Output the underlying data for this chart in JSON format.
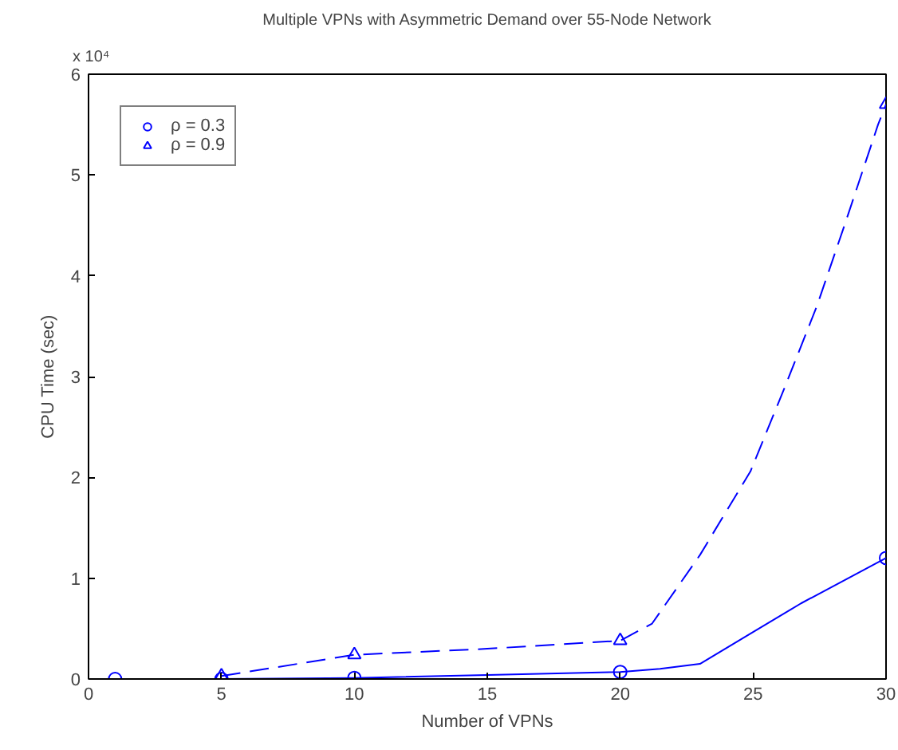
{
  "chart_data": {
    "type": "line",
    "title": "Multiple VPNs with Asymmetric Demand over 55-Node Network",
    "xlabel": "Number of VPNs",
    "ylabel": "CPU Time (sec)",
    "annotations": [
      "x 10⁴"
    ],
    "xlim": [
      0,
      30
    ],
    "xticks": [
      0,
      5,
      10,
      15,
      20,
      25,
      30
    ],
    "ylim": [
      0,
      6
    ],
    "yticks": [
      0,
      1,
      2,
      3,
      4,
      5,
      6
    ],
    "grid": false,
    "legend": "top left",
    "series": [
      {
        "color": "#0000ff",
        "line_style": "solid",
        "x": [
          1,
          5,
          10,
          15,
          20,
          21.5,
          23,
          24.9,
          26.8,
          30
        ],
        "values": [
          0,
          0,
          0.01,
          0.04,
          0.07,
          0.1,
          0.15,
          0.45,
          0.75,
          1.2
        ]
      },
      {
        "color": "#0000ff",
        "line_style": "dashed",
        "x": [
          5,
          10,
          15,
          20,
          21.2,
          23,
          24.9,
          26.2,
          27.4,
          28.5,
          29.7,
          30
        ],
        "values": [
          0.03,
          0.24,
          0.3,
          0.38,
          0.55,
          1.23,
          2.06,
          2.9,
          3.7,
          4.55,
          5.5,
          5.7
        ]
      },
      {
        "type": "scatter",
        "name": "ρ = 0.3",
        "color": "#0000ff",
        "marker": "circle",
        "x": [
          1,
          5,
          10,
          20,
          30
        ],
        "values": [
          0,
          0,
          0.01,
          0.07,
          1.2
        ]
      },
      {
        "type": "scatter",
        "name": "ρ = 0.9",
        "color": "#0000ff",
        "marker": "triangle",
        "x": [
          5,
          10,
          20,
          30
        ],
        "values": [
          0.03,
          0.24,
          0.38,
          5.7
        ]
      }
    ]
  }
}
